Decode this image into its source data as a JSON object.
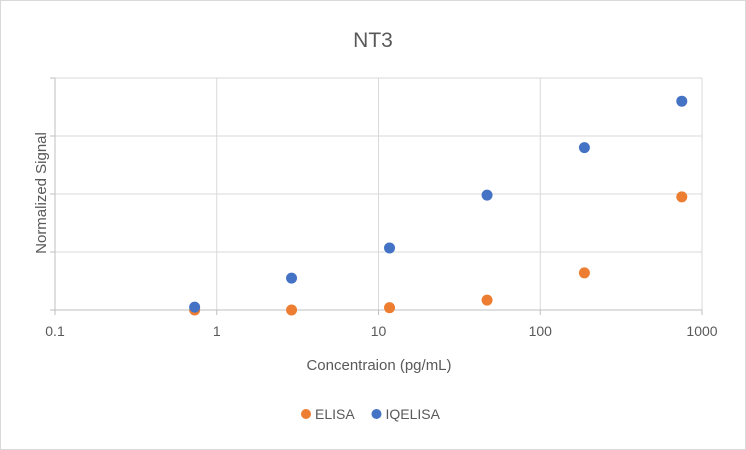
{
  "chart_data": {
    "type": "scatter",
    "title": "NT3",
    "xlabel": "Concentraion (pg/mL)",
    "ylabel": "Normalized Signal",
    "xscale": "log",
    "xlim": [
      0.1,
      1000
    ],
    "x_ticks": [
      "0.1",
      "1",
      "10",
      "100",
      "1000"
    ],
    "ylim": [
      0,
      4
    ],
    "y_tick_labels_shown": false,
    "grid": true,
    "legend_position": "bottom",
    "series": [
      {
        "name": "ELISA",
        "color": "#ED7D31",
        "points": [
          {
            "x": 0.73,
            "y": 0.0
          },
          {
            "x": 2.9,
            "y": 0.0
          },
          {
            "x": 11.7,
            "y": 0.04
          },
          {
            "x": 46.9,
            "y": 0.17
          },
          {
            "x": 187.5,
            "y": 0.64
          },
          {
            "x": 750,
            "y": 1.95
          }
        ]
      },
      {
        "name": "IQELISA",
        "color": "#4472C4",
        "points": [
          {
            "x": 0.73,
            "y": 0.05
          },
          {
            "x": 2.9,
            "y": 0.55
          },
          {
            "x": 11.7,
            "y": 1.07
          },
          {
            "x": 46.9,
            "y": 1.98
          },
          {
            "x": 187.5,
            "y": 2.8
          },
          {
            "x": 750,
            "y": 3.6
          }
        ]
      }
    ]
  }
}
